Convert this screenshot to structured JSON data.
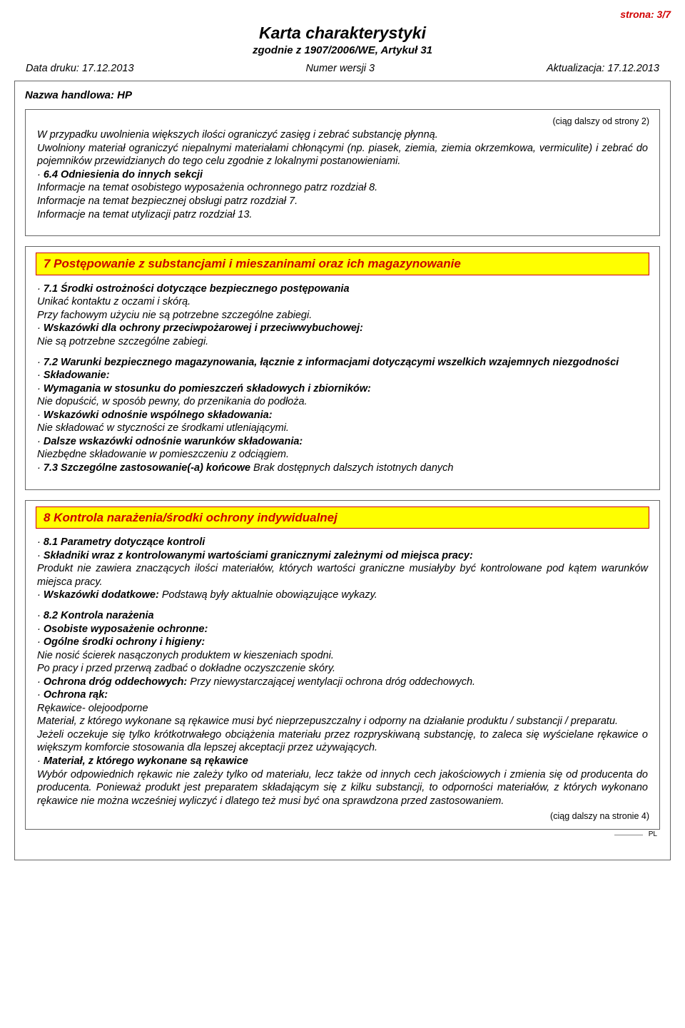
{
  "page_number": "strona: 3/7",
  "title": "Karta charakterystyki",
  "subtitle": "zgodnie z 1907/2006/WE, Artykuł 31",
  "meta": {
    "print_date": "Data druku: 17.12.2013",
    "version": "Numer wersji 3",
    "revision": "Aktualizacja: 17.12.2013"
  },
  "trade_name_label": "Nazwa handlowa: HP",
  "cont_from": "(ciąg dalszy od strony 2)",
  "box1": {
    "p1": "W przypadku uwolnienia większych ilości ograniczyć zasięg i zebrać substancję płynną.",
    "p2": "Uwolniony materiał ograniczyć niepalnymi materiałami chłonącymi (np. piasek, ziemia, ziemia okrzemkowa, vermiculite) i zebrać do pojemników przewidzianych do tego celu zgodnie z lokalnymi postanowieniami.",
    "h64": "6.4 Odniesienia do innych sekcji",
    "p3": "Informacje na temat osobistego wyposażenia ochronnego patrz rozdział 8.",
    "p4": "Informacje na temat bezpiecznej obsługi patrz rozdział 7.",
    "p5": "Informacje na temat utylizacji patrz rozdział 13."
  },
  "section7": {
    "header": "7 Postępowanie z substancjami i mieszaninami oraz ich magazynowanie",
    "h71": "7.1 Środki ostrożności dotyczące bezpiecznego postępowania",
    "p71a": "Unikać kontaktu z oczami i skórą.",
    "p71b": "Przy fachowym użyciu nie są potrzebne szczególne zabiegi.",
    "h71c": "Wskazówki dla ochrony przeciwpożarowej i przeciwwybuchowej:",
    "p71c": "Nie są potrzebne szczególne zabiegi.",
    "h72": "7.2 Warunki bezpiecznego magazynowania, łącznie z informacjami dotyczącymi wszelkich wzajemnych niezgodności",
    "h72a": "Składowanie:",
    "h72b": "Wymagania w stosunku do pomieszczeń składowych i zbiorników:",
    "p72b": "Nie dopuścić, w sposób pewny, do przenikania do podłoża.",
    "h72c": "Wskazówki odnośnie wspólnego składowania:",
    "p72c": "Nie składować w styczności ze środkami utleniającymi.",
    "h72d": "Dalsze wskazówki odnośnie warunków składowania:",
    "p72d": "Niezbędne składowanie w pomieszczeniu z odciągiem.",
    "h73_label": "7.3 Szczególne zastosowanie(-a) końcowe",
    "h73_value": " Brak dostępnych dalszych istotnych danych"
  },
  "section8": {
    "header": "8 Kontrola narażenia/środki ochrony indywidualnej",
    "h81": "8.1 Parametry dotyczące kontroli",
    "h81a": "Składniki wraz z kontrolowanymi wartościami granicznymi zależnymi od miejsca pracy:",
    "p81a": "Produkt nie zawiera znaczących ilości materiałów, których wartości graniczne musiałyby być kontrolowane pod kątem warunków miejsca pracy.",
    "h81b_label": "Wskazówki dodatkowe:",
    "h81b_value": " Podstawą były aktualnie obowiązujące wykazy.",
    "h82": "8.2 Kontrola narażenia",
    "h82a": "Osobiste wyposażenie ochronne:",
    "h82b": "Ogólne środki ochrony i higieny:",
    "p82b1": "Nie nosić ścierek nasączonych produktem w kieszeniach spodni.",
    "p82b2": "Po pracy i przed przerwą zadbać o dokładne oczyszczenie skóry.",
    "h82c_label": "Ochrona dróg oddechowych:",
    "h82c_value": " Przy niewystarczającej wentylacji ochrona dróg oddechowych.",
    "h82d": "Ochrona rąk:",
    "p82d1": "Rękawice- olejoodporne",
    "p82d2": "Materiał, z którego wykonane są rękawice musi być nieprzepuszczalny i odporny na działanie produktu / substancji / preparatu.",
    "p82d3": "Jeżeli oczekuje się tylko krótkotrwałego obciążenia materiału przez rozpryskiwaną substancję, to zaleca się wyścielane rękawice o większym komforcie stosowania dla lepszej akceptacji przez używających.",
    "h82e": "Materiał, z którego wykonane są rękawice",
    "p82e": "Wybór odpowiednich rękawic nie zależy tylko od materiału, lecz także od innych cech jakościowych i zmienia się od producenta do producenta. Ponieważ produkt jest preparatem składającym się z kilku substancji, to odporności materiałów, z których wykonano rękawice nie można wcześniej wyliczyć i dlatego też musi być ona sprawdzona przed zastosowaniem."
  },
  "cont_to": "(ciąg dalszy na stronie 4)",
  "pl": "PL",
  "colors": {
    "header_bg": "#ffff00",
    "header_border": "#cc0000",
    "header_text": "#cc0000",
    "page_num": "#d10000",
    "box_border": "#666666"
  }
}
